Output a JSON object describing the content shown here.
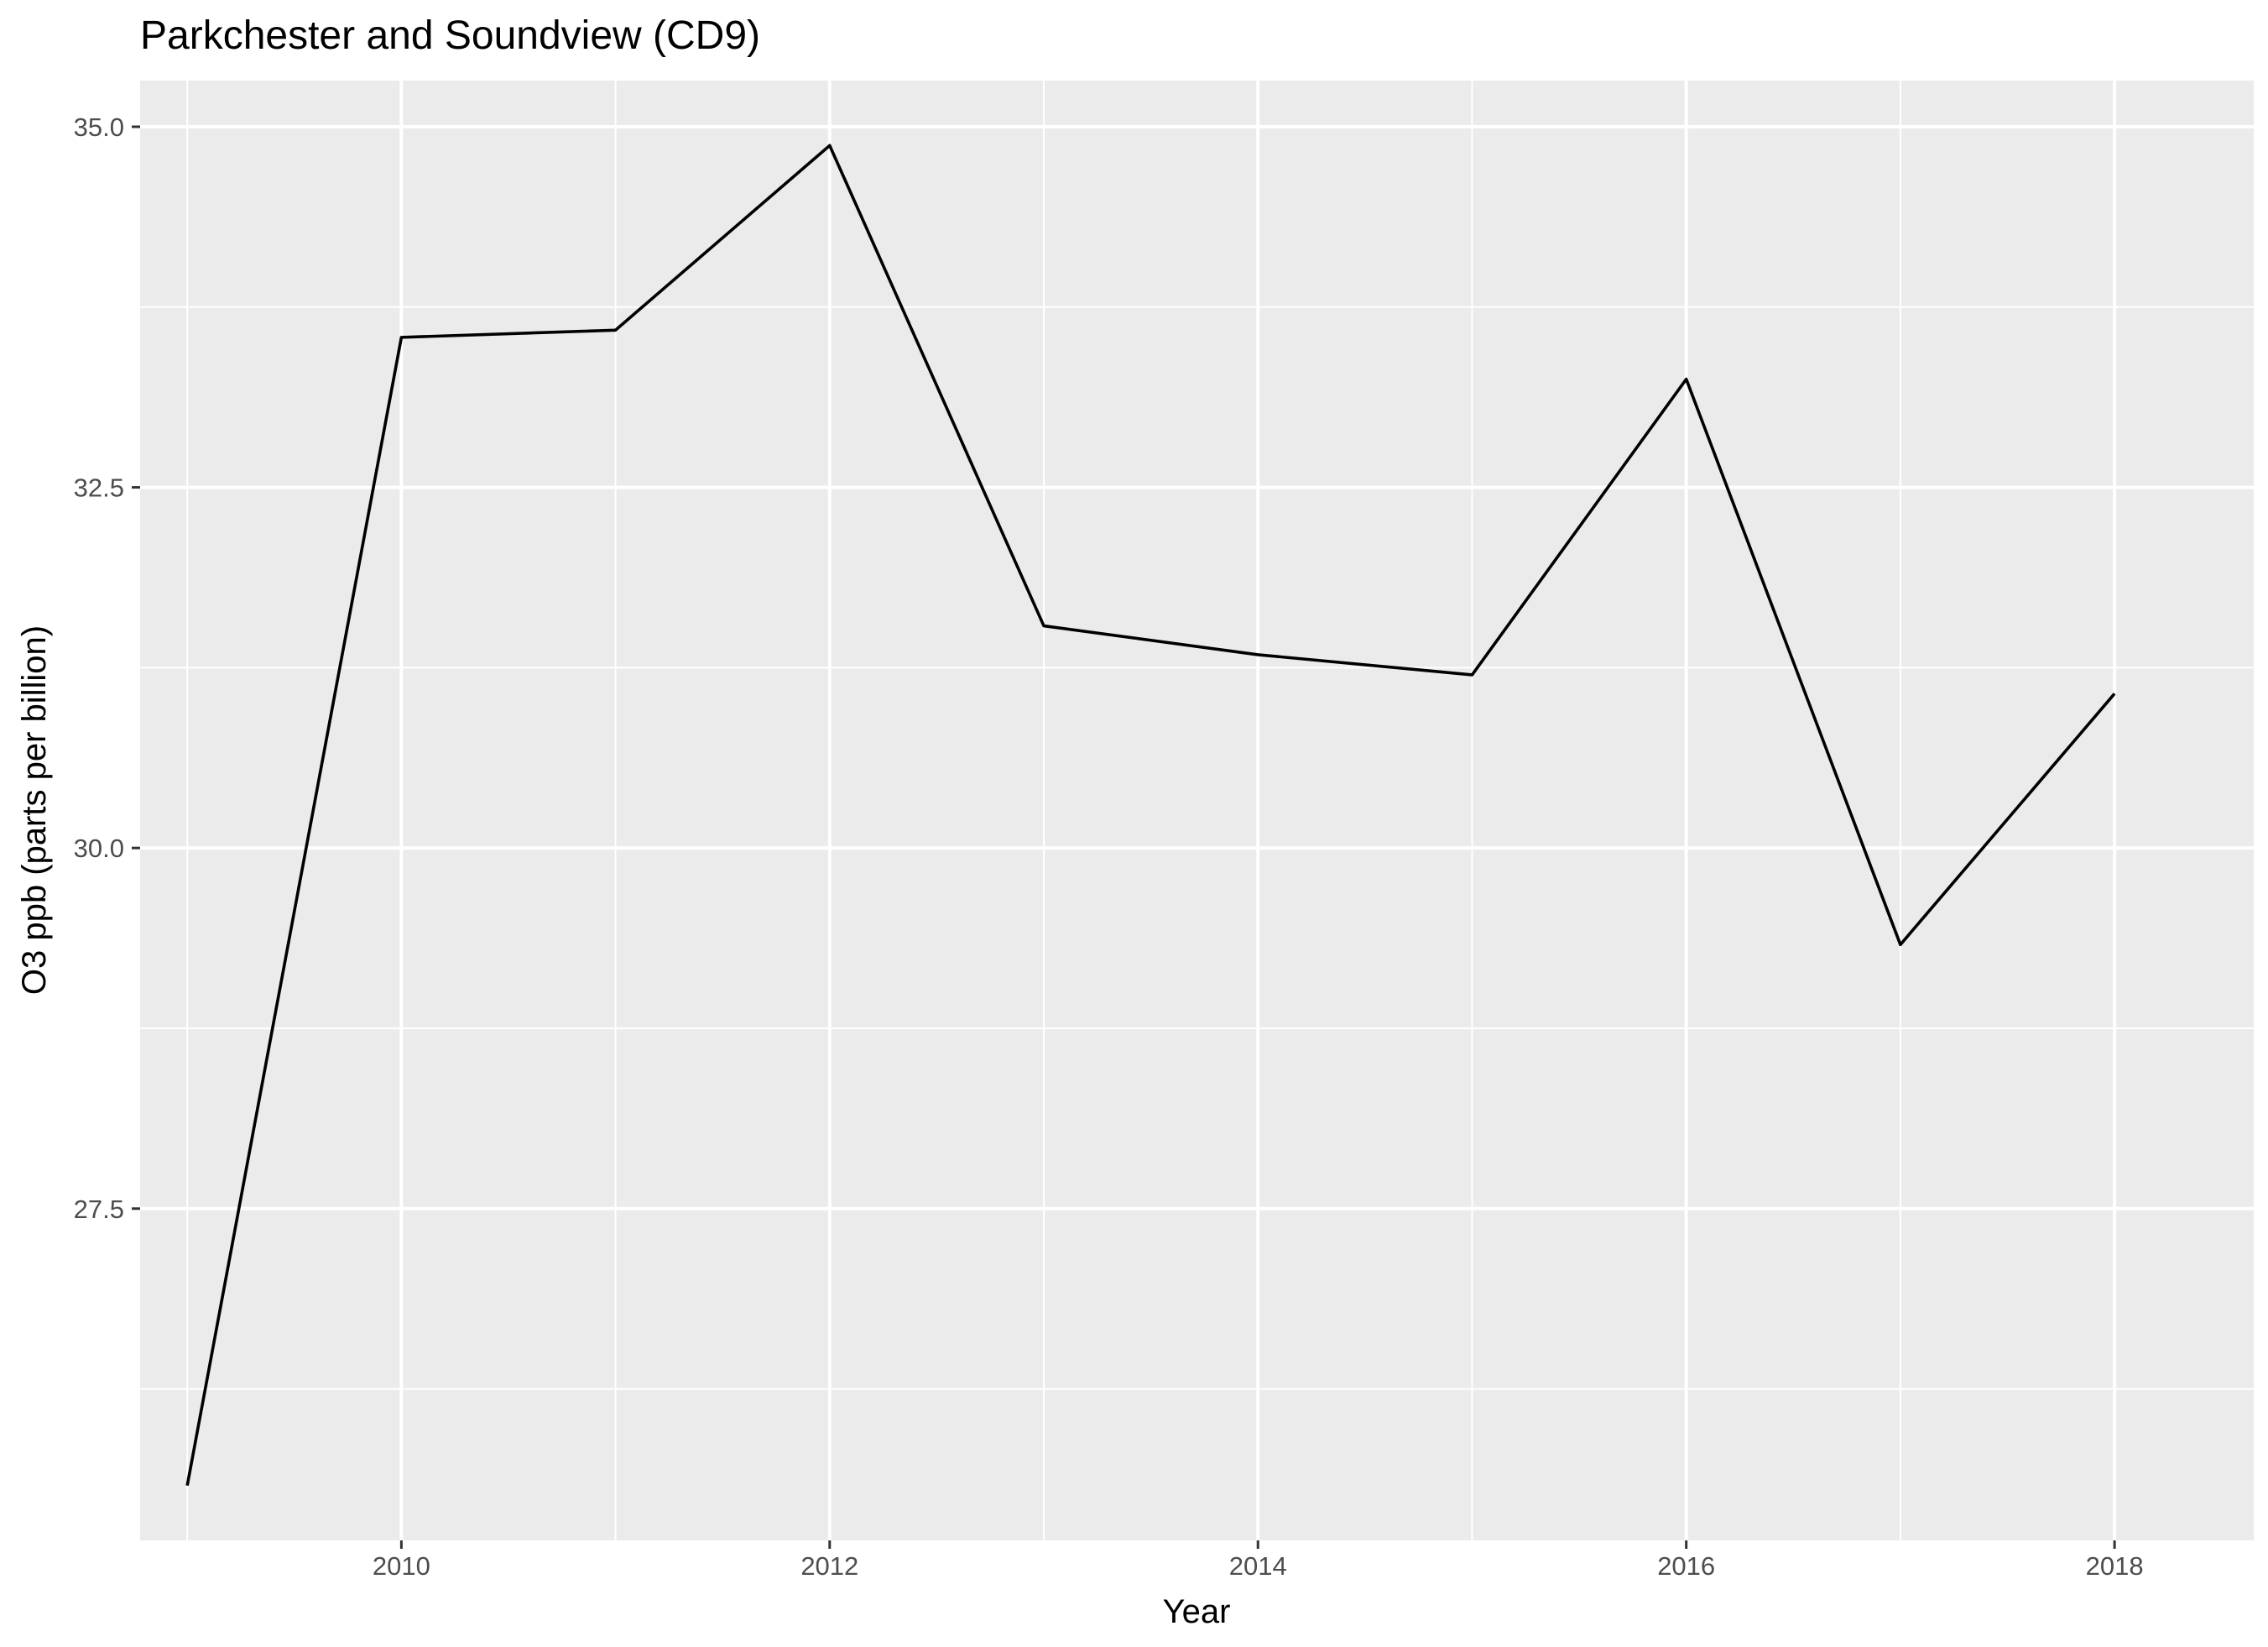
{
  "chart_data": {
    "type": "line",
    "title": "Parkchester and Soundview (CD9)",
    "xlabel": "Year",
    "ylabel": "O3 ppb (parts per billion)",
    "x": [
      2009,
      2010,
      2011,
      2012,
      2013,
      2014,
      2015,
      2016,
      2017,
      2018
    ],
    "series": [
      {
        "name": "",
        "values": [
          25.58,
          33.54,
          33.59,
          34.87,
          31.54,
          31.34,
          31.2,
          33.25,
          29.33,
          31.07
        ]
      }
    ],
    "xlim": [
      2008.78,
      2018.65
    ],
    "ylim": [
      25.2,
      35.32
    ],
    "x_ticks": [
      "2010",
      "2012",
      "2014",
      "2016",
      "2018"
    ],
    "y_ticks": [
      "27.5",
      "30.0",
      "32.5",
      "35.0"
    ],
    "grid": true,
    "legend": "none",
    "colors": {
      "panel_background": "#EBEBEB",
      "grid_line": "#FFFFFF",
      "line": "#000000",
      "tick_label": "#4D4D4D"
    }
  }
}
